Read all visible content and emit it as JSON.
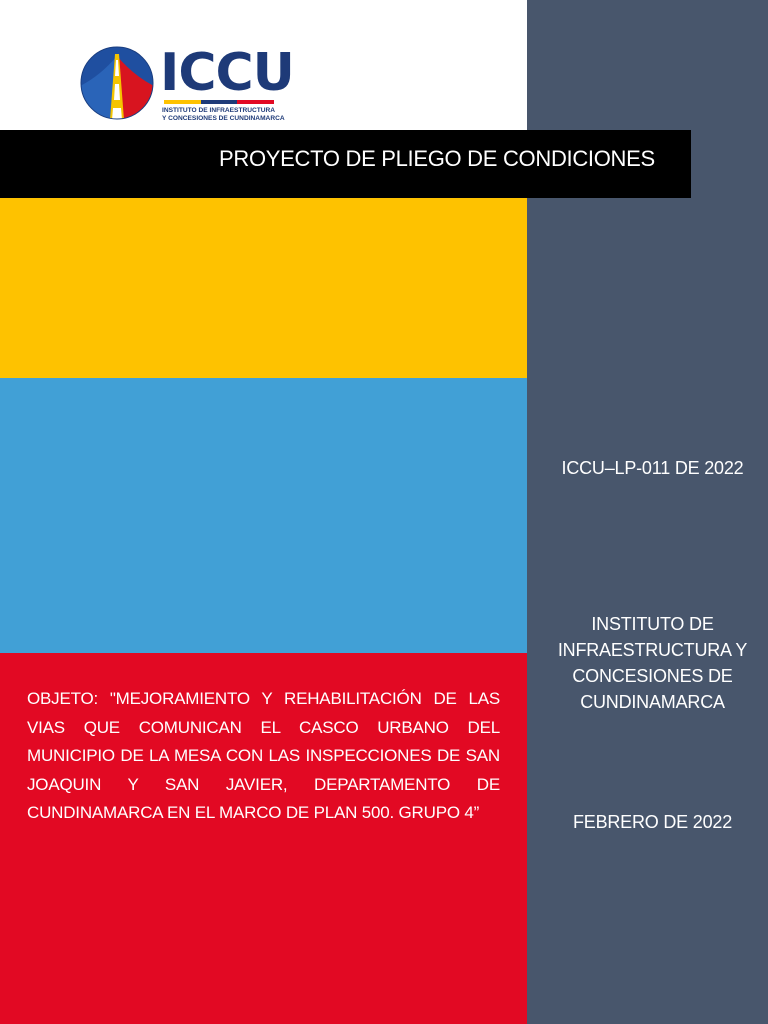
{
  "logo": {
    "word": "ICCU",
    "subtitle_line1": "INSTITUTO DE INFRAESTRUCTURA",
    "subtitle_line2": "Y CONCESIONES DE CUNDINAMARCA",
    "emblem_icon": "road-globe-icon"
  },
  "colors": {
    "yellow": "#fec200",
    "blue": "#41a0d6",
    "red": "#e20923",
    "sidebar": "#48566c",
    "title_bar": "#000000",
    "logo_navy": "#1e3a78"
  },
  "title": "PROYECTO DE PLIEGO DE CONDICIONES",
  "sidebar": {
    "code": "ICCU–LP-011 DE 2022",
    "org_line1": "INSTITUTO DE",
    "org_line2": "INFRAESTRUCTURA Y",
    "org_line3": "CONCESIONES DE",
    "org_line4": "CUNDINAMARCA",
    "date": "FEBRERO DE 2022"
  },
  "objective": "OBJETO: \"MEJORAMIENTO Y REHABILITACIÓN DE LAS VIAS QUE COMUNICAN EL CASCO URBANO DEL MUNICIPIO DE LA MESA CON LAS INSPECCIONES DE SAN JOAQUIN Y SAN JAVIER, DEPARTAMENTO DE CUNDINAMARCA EN EL MARCO DE PLAN 500. GRUPO 4”"
}
